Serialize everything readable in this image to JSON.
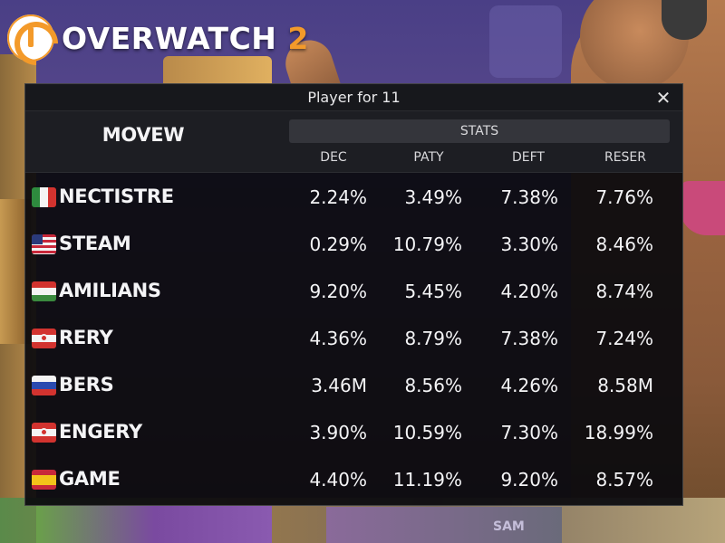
{
  "logo": {
    "text": "OVERWATCH",
    "number": "2"
  },
  "background": {
    "sign_text": "SAM"
  },
  "dialog": {
    "title": "Player for 11",
    "close_glyph": "✕",
    "group_header": "STATS",
    "columns": [
      "MOVEW",
      "DEC",
      "PATY",
      "DEFT",
      "RESER"
    ]
  },
  "rows": [
    {
      "name": "NECTISTRE",
      "flag": "italy",
      "values": [
        "2.24%",
        "3.49%",
        "7.38%",
        "7.76%"
      ]
    },
    {
      "name": "STEAM",
      "flag": "usa",
      "values": [
        "0.29%",
        "10.79%",
        "3.30%",
        "8.46%"
      ]
    },
    {
      "name": "AMILIANS",
      "flag": "hungary",
      "values": [
        "9.20%",
        "5.45%",
        "4.20%",
        "8.74%"
      ]
    },
    {
      "name": "RERY",
      "flag": "red-white-emblem",
      "values": [
        "4.36%",
        "8.79%",
        "7.38%",
        "7.24%"
      ]
    },
    {
      "name": "BERS",
      "flag": "russia",
      "values": [
        "3.46M",
        "8.56%",
        "4.26%",
        "8.58M"
      ]
    },
    {
      "name": "ENGERY",
      "flag": "red-white-emblem",
      "values": [
        "3.90%",
        "10.59%",
        "7.30%",
        "18.99%"
      ]
    },
    {
      "name": "GAME",
      "flag": "spain",
      "values": [
        "4.40%",
        "11.19%",
        "9.20%",
        "8.57%"
      ]
    }
  ],
  "colors": {
    "panel_bg": "#0a0a0e",
    "header_bg": "#1d1e23",
    "stats_bar": "#34353b",
    "text": "#f4f4f6",
    "logo_accent": "#f39a2a"
  }
}
